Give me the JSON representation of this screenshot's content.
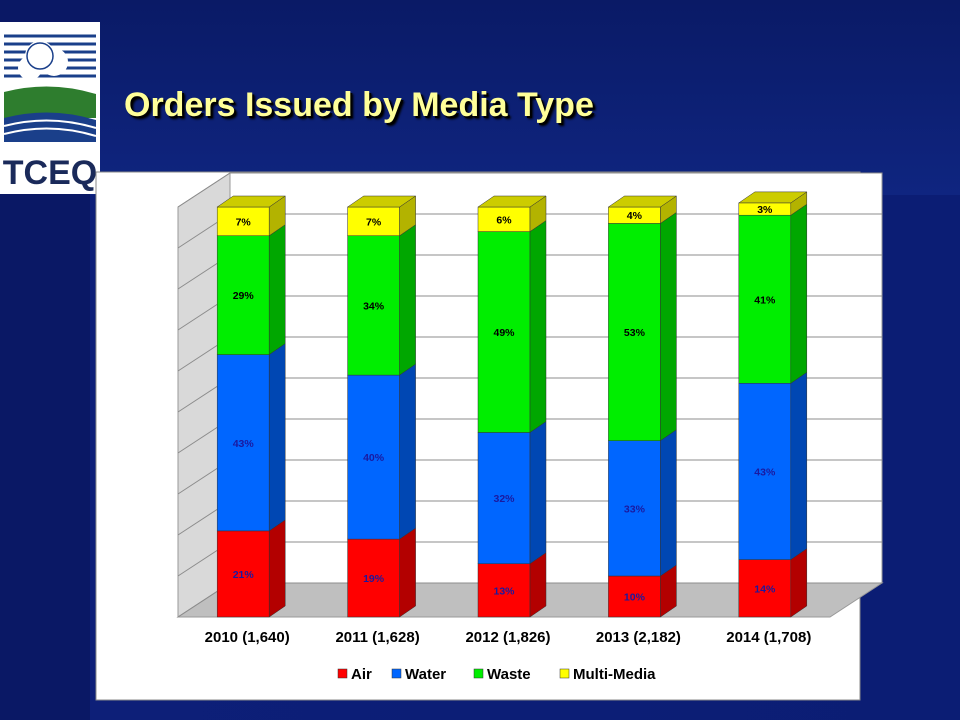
{
  "slide": {
    "title": "Orders Issued by Media Type",
    "logo_text": "TCEQ"
  },
  "colors": {
    "background": "#0d1f78",
    "title": "#ffff99",
    "plot_area": "#ffffff",
    "Air": "#ff0000",
    "Water": "#0066ff",
    "Waste": "#00ee00",
    "Multi-Media": "#ffff00"
  },
  "chart_data": {
    "type": "bar",
    "stacked": true,
    "three_d": true,
    "categories": [
      "2010 (1,640)",
      "2011 (1,628)",
      "2012 (1,826)",
      "2013 (2,182)",
      "2014 (1,708)"
    ],
    "series": [
      {
        "name": "Air",
        "values": [
          21,
          19,
          13,
          10,
          14
        ],
        "labels": [
          "21%",
          "19%",
          "13%",
          "10%",
          "14%"
        ]
      },
      {
        "name": "Water",
        "values": [
          43,
          40,
          32,
          33,
          43
        ],
        "labels": [
          "43%",
          "40%",
          "32%",
          "33%",
          "43%"
        ]
      },
      {
        "name": "Waste",
        "values": [
          29,
          34,
          49,
          53,
          41
        ],
        "labels": [
          "29%",
          "34%",
          "49%",
          "53%",
          "41%"
        ]
      },
      {
        "name": "Multi-Media",
        "values": [
          7,
          7,
          6,
          4,
          3
        ],
        "labels": [
          "7%",
          "7%",
          "6%",
          "4%",
          "3%"
        ]
      }
    ],
    "ylim": [
      0,
      100
    ],
    "yticks": [
      "0%",
      "10%",
      "20%",
      "30%",
      "40%",
      "50%",
      "60%",
      "70%",
      "80%",
      "90%",
      "100%"
    ],
    "grid": true,
    "legend_position": "bottom"
  }
}
